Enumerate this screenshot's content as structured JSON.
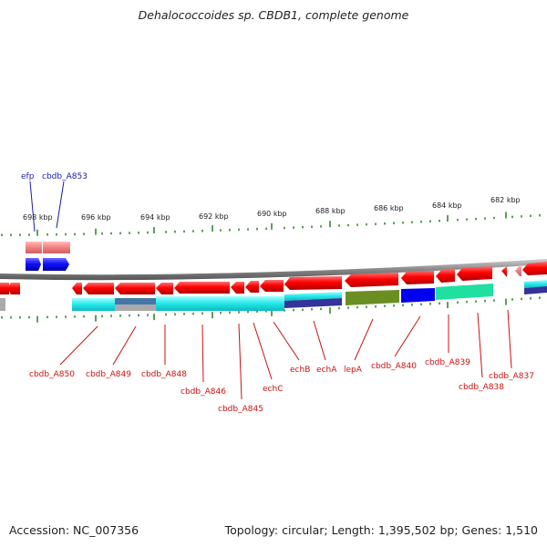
{
  "title": "Dehalococcoides sp. CBDB1, complete genome",
  "footer": {
    "accession": "Accession: NC_007356",
    "summary": "Topology: circular; Length: 1,395,502 bp; Genes: 1,510"
  },
  "scale_labels": [
    "698 kbp",
    "696 kbp",
    "694 kbp",
    "692 kbp",
    "690 kbp",
    "688 kbp",
    "686 kbp",
    "684 kbp",
    "682 kbp"
  ],
  "top_labels": [
    "efp",
    "cbdb_A853"
  ],
  "bottom_labels": [
    "cbdb_A850",
    "cbdb_A849",
    "cbdb_A848",
    "cbdb_A846",
    "cbdb_A845",
    "echC",
    "echB",
    "echA",
    "lepA",
    "cbdb_A840",
    "cbdb_A839",
    "cbdb_A838",
    "cbdb_A837"
  ],
  "colors": {
    "forward_gene": "#2222dd",
    "reverse_gene": "#e00000",
    "rna_gene": "#f08080",
    "backbone": "#888888",
    "tick": "#338833",
    "label_blue": "#1a1aa8",
    "label_red": "#cc1111",
    "cds_cyan": "#22e8e8",
    "cds_green": "#6b8e23",
    "cds_blue": "#0000ee",
    "cds_teal": "#20e0a0",
    "cds_navy": "#333399",
    "cds_gray": "#aaaaaa",
    "cds_steel": "#4477aa"
  }
}
